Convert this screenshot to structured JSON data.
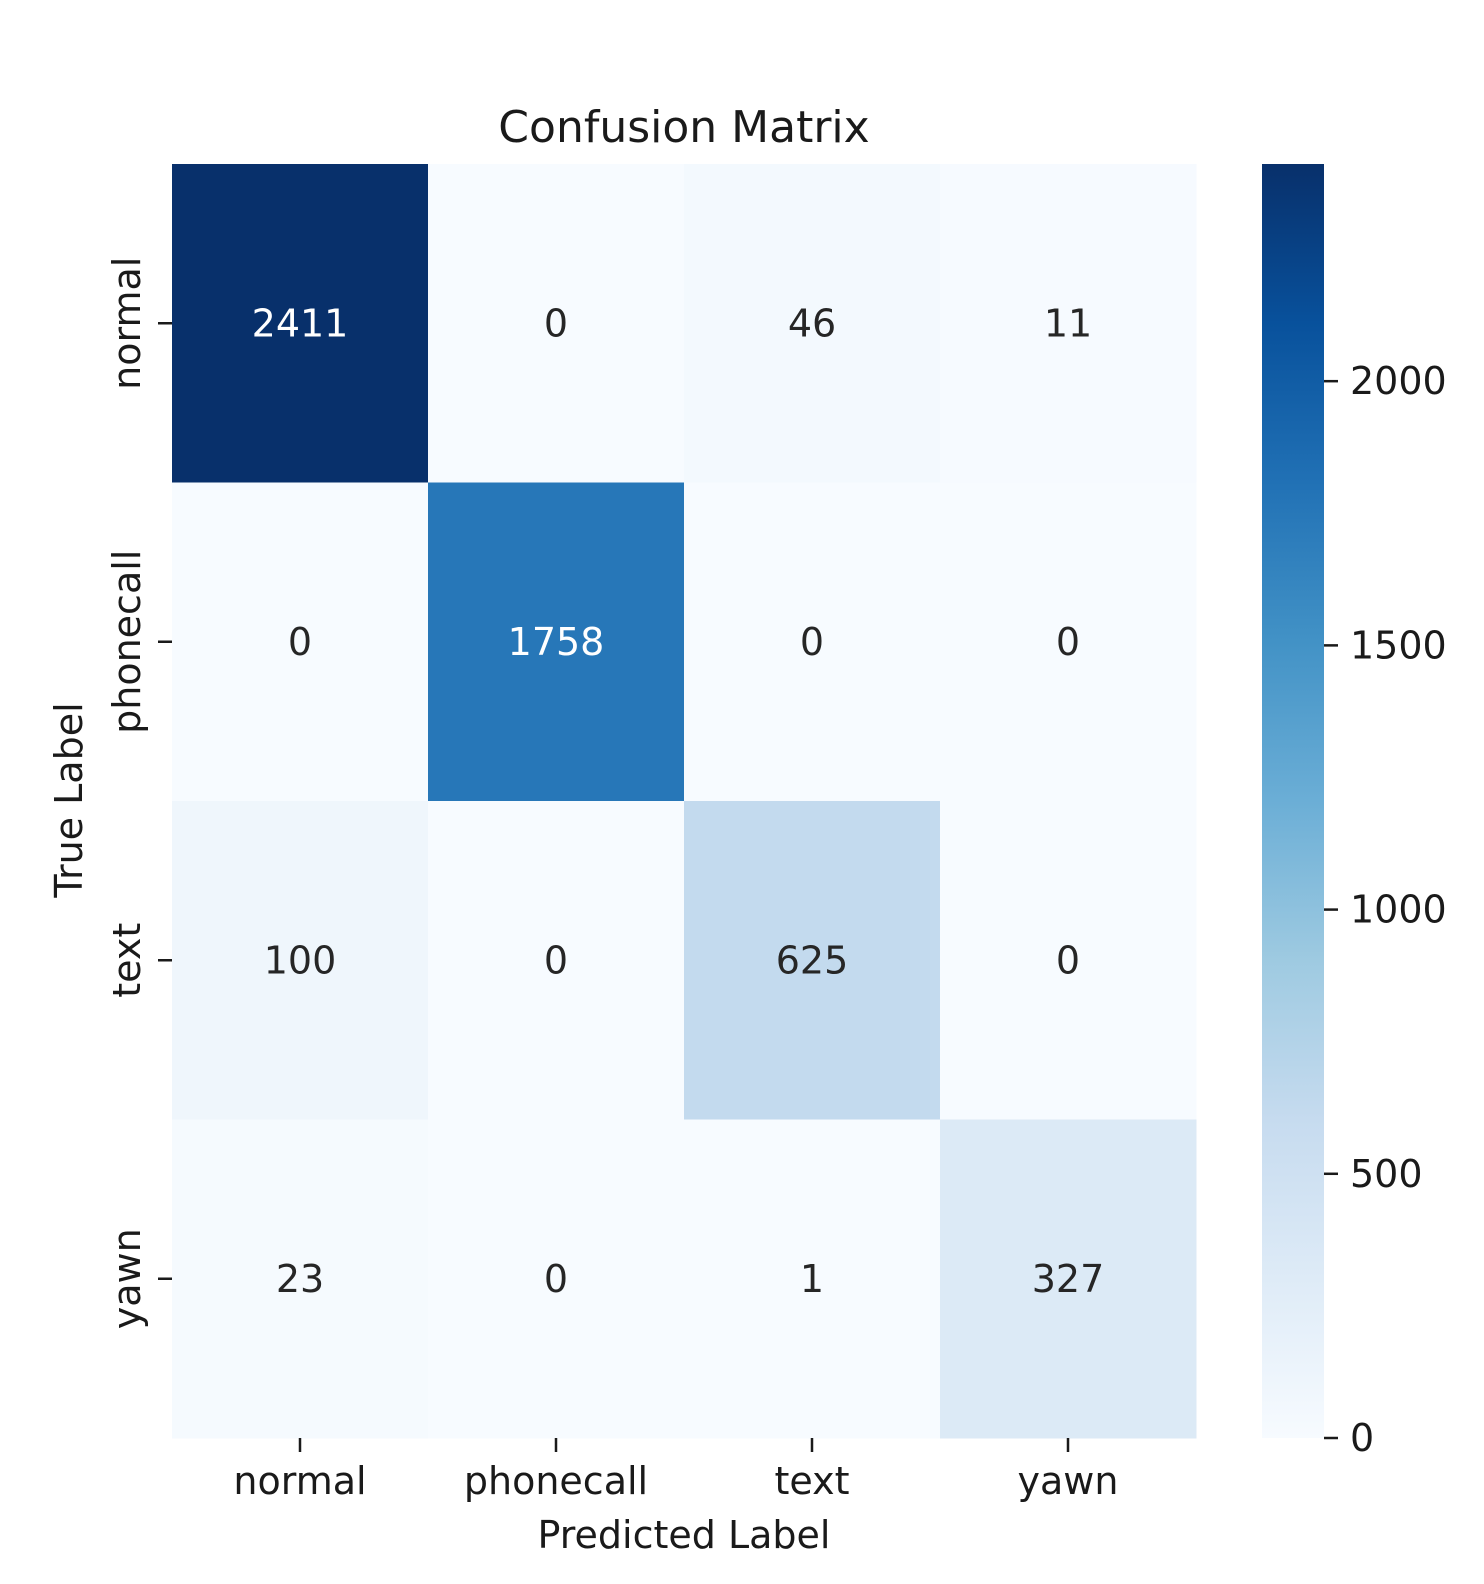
{
  "chart_data": {
    "type": "heatmap",
    "title": "Confusion Matrix",
    "xlabel": "Predicted Label",
    "ylabel": "True Label",
    "x_categories": [
      "normal",
      "phonecall",
      "text",
      "yawn"
    ],
    "y_categories": [
      "normal",
      "phonecall",
      "text",
      "yawn"
    ],
    "values": [
      [
        2411,
        0,
        46,
        11
      ],
      [
        0,
        1758,
        0,
        0
      ],
      [
        100,
        0,
        625,
        0
      ],
      [
        23,
        0,
        1,
        327
      ]
    ],
    "colorbar": {
      "range": [
        0,
        2411
      ],
      "ticks": [
        0,
        500,
        1000,
        1500,
        2000
      ],
      "colormap": "Blues"
    }
  }
}
